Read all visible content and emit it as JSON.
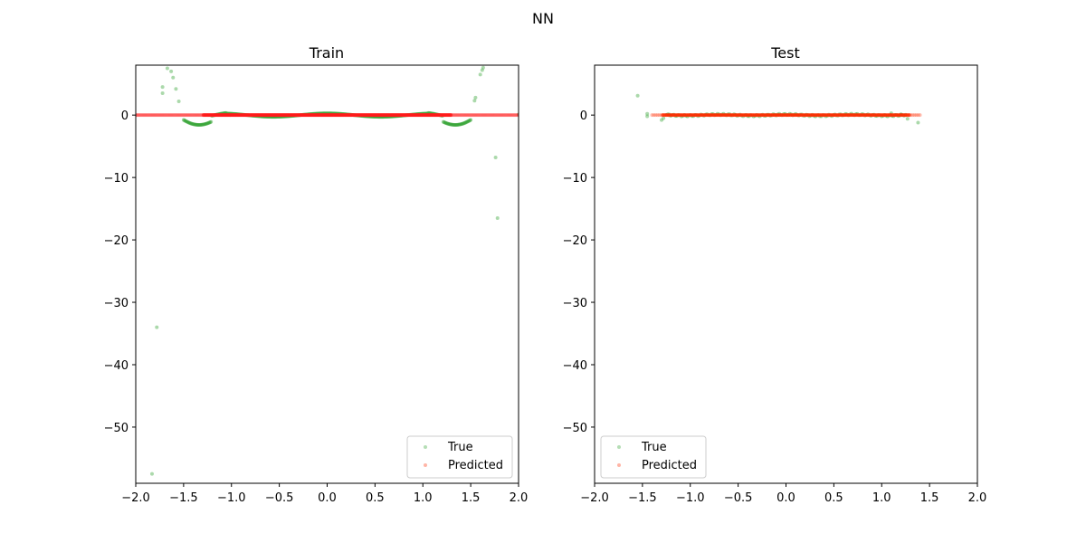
{
  "figure": {
    "title": "NN"
  },
  "colors": {
    "true": "#2ca02c",
    "predicted": "#ff2a00",
    "predicted_train": "#ff1a1a"
  },
  "chart_data": [
    {
      "type": "scatter",
      "title": "Train",
      "xlim": [
        -2.0,
        2.0
      ],
      "ylim": [
        -59,
        8
      ],
      "xticks": [
        -2.0,
        -1.5,
        -1.0,
        -0.5,
        0.0,
        0.5,
        1.0,
        1.5,
        2.0
      ],
      "xtick_labels": [
        "−2.0",
        "−1.5",
        "−1.0",
        "−0.5",
        "0.0",
        "0.5",
        "1.0",
        "1.5",
        "2.0"
      ],
      "yticks": [
        0,
        -10,
        -20,
        -30,
        -40,
        -50
      ],
      "ytick_labels": [
        "0",
        "−10",
        "−20",
        "−30",
        "−40",
        "−50"
      ],
      "legend": {
        "position": "lower right",
        "entries": [
          "True",
          "Predicted"
        ]
      },
      "series": [
        {
          "name": "True",
          "outliers": [
            [
              -1.83,
              -57.5
            ],
            [
              -1.78,
              -34.0
            ],
            [
              -1.72,
              4.5
            ],
            [
              -1.72,
              3.5
            ],
            [
              -1.67,
              7.5
            ],
            [
              -1.63,
              7.0
            ],
            [
              -1.61,
              6.0
            ],
            [
              -1.58,
              4.2
            ],
            [
              -1.55,
              2.2
            ],
            [
              1.54,
              2.3
            ],
            [
              1.55,
              2.8
            ],
            [
              1.6,
              6.5
            ],
            [
              1.62,
              7.2
            ],
            [
              1.63,
              7.6
            ],
            [
              1.76,
              -6.8
            ],
            [
              1.78,
              -16.5
            ],
            [
              2.0,
              0.1
            ]
          ],
          "x_start": -1.5,
          "x_end": 1.5,
          "count": 420
        },
        {
          "name": "Predicted",
          "x_start": -2.0,
          "x_end": 2.0,
          "count": 380
        }
      ]
    },
    {
      "type": "scatter",
      "title": "Test",
      "xlim": [
        -2.0,
        2.0
      ],
      "ylim": [
        -59,
        8
      ],
      "xticks": [
        -2.0,
        -1.5,
        -1.0,
        -0.5,
        0.0,
        0.5,
        1.0,
        1.5,
        2.0
      ],
      "xtick_labels": [
        "−2.0",
        "−1.5",
        "−1.0",
        "−0.5",
        "0.0",
        "0.5",
        "1.0",
        "1.5",
        "2.0"
      ],
      "yticks": [
        0,
        -10,
        -20,
        -30,
        -40,
        -50
      ],
      "ytick_labels": [
        "0",
        "−10",
        "−20",
        "−30",
        "−40",
        "−50"
      ],
      "legend": {
        "position": "lower left",
        "entries": [
          "True",
          "Predicted"
        ]
      },
      "series": [
        {
          "name": "True",
          "outliers": [
            [
              -1.55,
              3.1
            ],
            [
              -1.45,
              -0.2
            ],
            [
              -1.45,
              0.2
            ],
            [
              -1.3,
              -0.8
            ],
            [
              -1.28,
              -0.5
            ],
            [
              -1.22,
              0.1
            ],
            [
              1.1,
              0.3
            ],
            [
              1.2,
              0.1
            ],
            [
              1.27,
              -0.6
            ],
            [
              1.38,
              -1.2
            ]
          ],
          "x_start": -1.25,
          "x_end": 1.25,
          "count": 160
        },
        {
          "name": "Predicted",
          "x_start": -1.4,
          "x_end": 1.4,
          "count": 150
        }
      ]
    }
  ]
}
